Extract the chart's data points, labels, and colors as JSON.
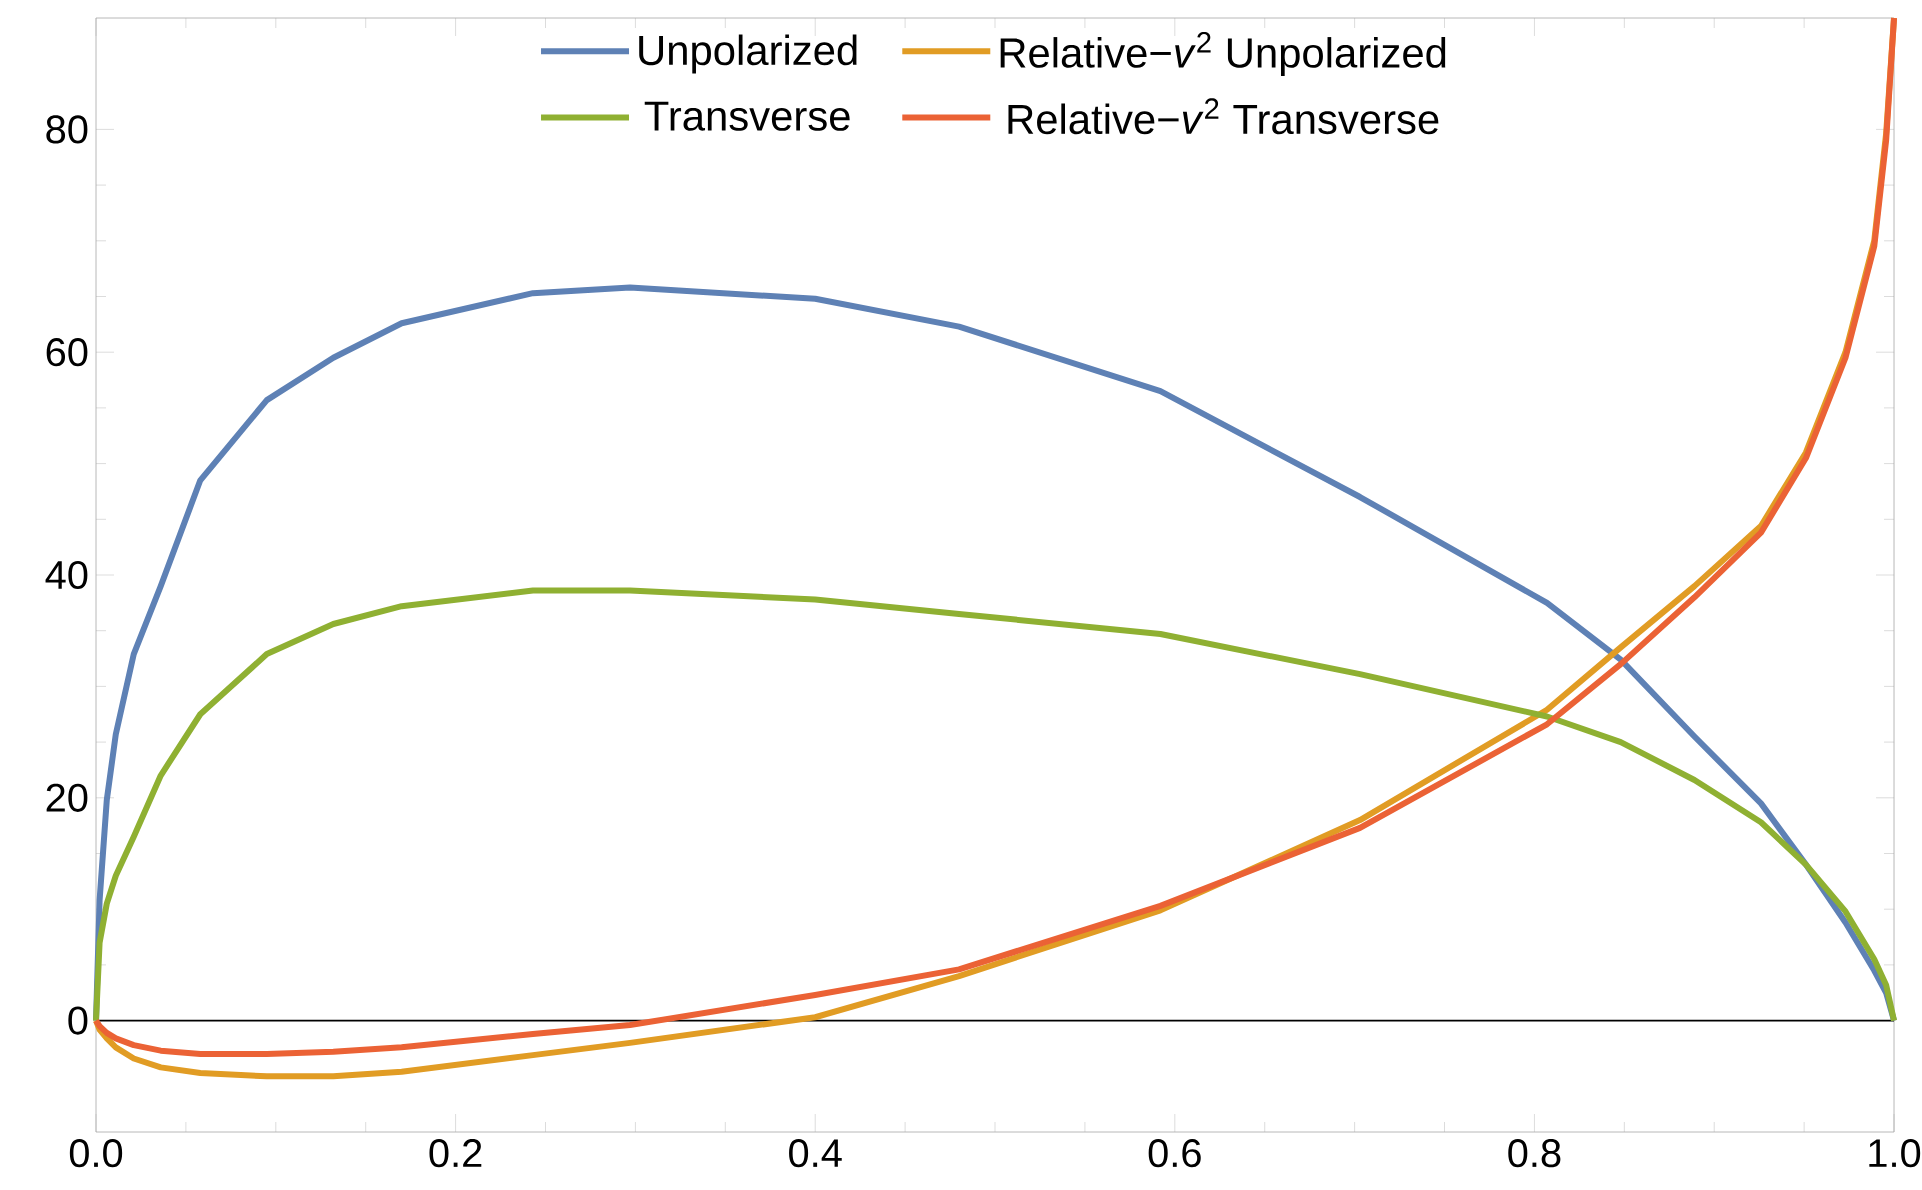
{
  "chart_data": {
    "type": "line",
    "x": [
      0,
      0.002,
      0.006,
      0.011,
      0.021,
      0.036,
      0.058,
      0.095,
      0.132,
      0.17,
      0.243,
      0.297,
      0.4,
      0.48,
      0.592,
      0.703,
      0.807,
      0.848,
      0.889,
      0.926,
      0.951,
      0.973,
      0.989,
      0.9956,
      1.0
    ],
    "series": [
      {
        "name": "Unpolarized",
        "color": "#5e81b5",
        "values": [
          0,
          10.8,
          19.8,
          25.7,
          32.9,
          39,
          48.5,
          55.7,
          59.5,
          62.6,
          65.3,
          65.8,
          64.8,
          62.3,
          56.5,
          47,
          37.5,
          32.4,
          25.5,
          19.5,
          14,
          8.8,
          4.5,
          2.5,
          0
        ]
      },
      {
        "name": "Relative−*v*$^{2}$ Unpolarized",
        "color": "#e19c24",
        "values": [
          0,
          -0.8,
          -1.6,
          -2.4,
          -3.4,
          -4.2,
          -4.7,
          -5.0,
          -5.0,
          -4.6,
          -3.1,
          -2.0,
          0.3,
          4.0,
          9.9,
          18,
          27.9,
          33.5,
          39,
          44.4,
          51,
          60,
          70,
          79.6,
          90
        ]
      },
      {
        "name": "Transverse",
        "color": "#8fb032",
        "values": [
          0,
          7,
          10.5,
          13,
          16.5,
          22,
          27.5,
          32.9,
          35.6,
          37.2,
          38.6,
          38.6,
          37.8,
          36.5,
          34.7,
          31.1,
          27.3,
          25,
          21.6,
          17.8,
          14,
          9.8,
          5.5,
          3.2,
          0
        ]
      },
      {
        "name": "Relative−*v*$^{2}$ Transverse",
        "color": "#eb6235",
        "values": [
          0,
          -0.5,
          -1.1,
          -1.6,
          -2.2,
          -2.7,
          -3.0,
          -3.0,
          -2.8,
          -2.4,
          -1.2,
          -0.4,
          2.3,
          4.6,
          10.3,
          17.3,
          26.6,
          32,
          38,
          43.8,
          50.5,
          59.5,
          69.5,
          79,
          90
        ]
      }
    ],
    "xlim": [
      0,
      1
    ],
    "ylim": [
      -10,
      90
    ],
    "xticks": [
      {
        "value": 0,
        "label": "0.0"
      },
      {
        "value": 0.2,
        "label": "0.2"
      },
      {
        "value": 0.4,
        "label": "0.4"
      },
      {
        "value": 0.6,
        "label": "0.6"
      },
      {
        "value": 0.8,
        "label": "0.8"
      },
      {
        "value": 1,
        "label": "1.0"
      }
    ],
    "yticks": [
      0,
      20,
      40,
      60,
      80
    ],
    "ref_lines": [
      {
        "axis": "y",
        "value": 0,
        "color": "#000000"
      }
    ],
    "legend": "top"
  }
}
